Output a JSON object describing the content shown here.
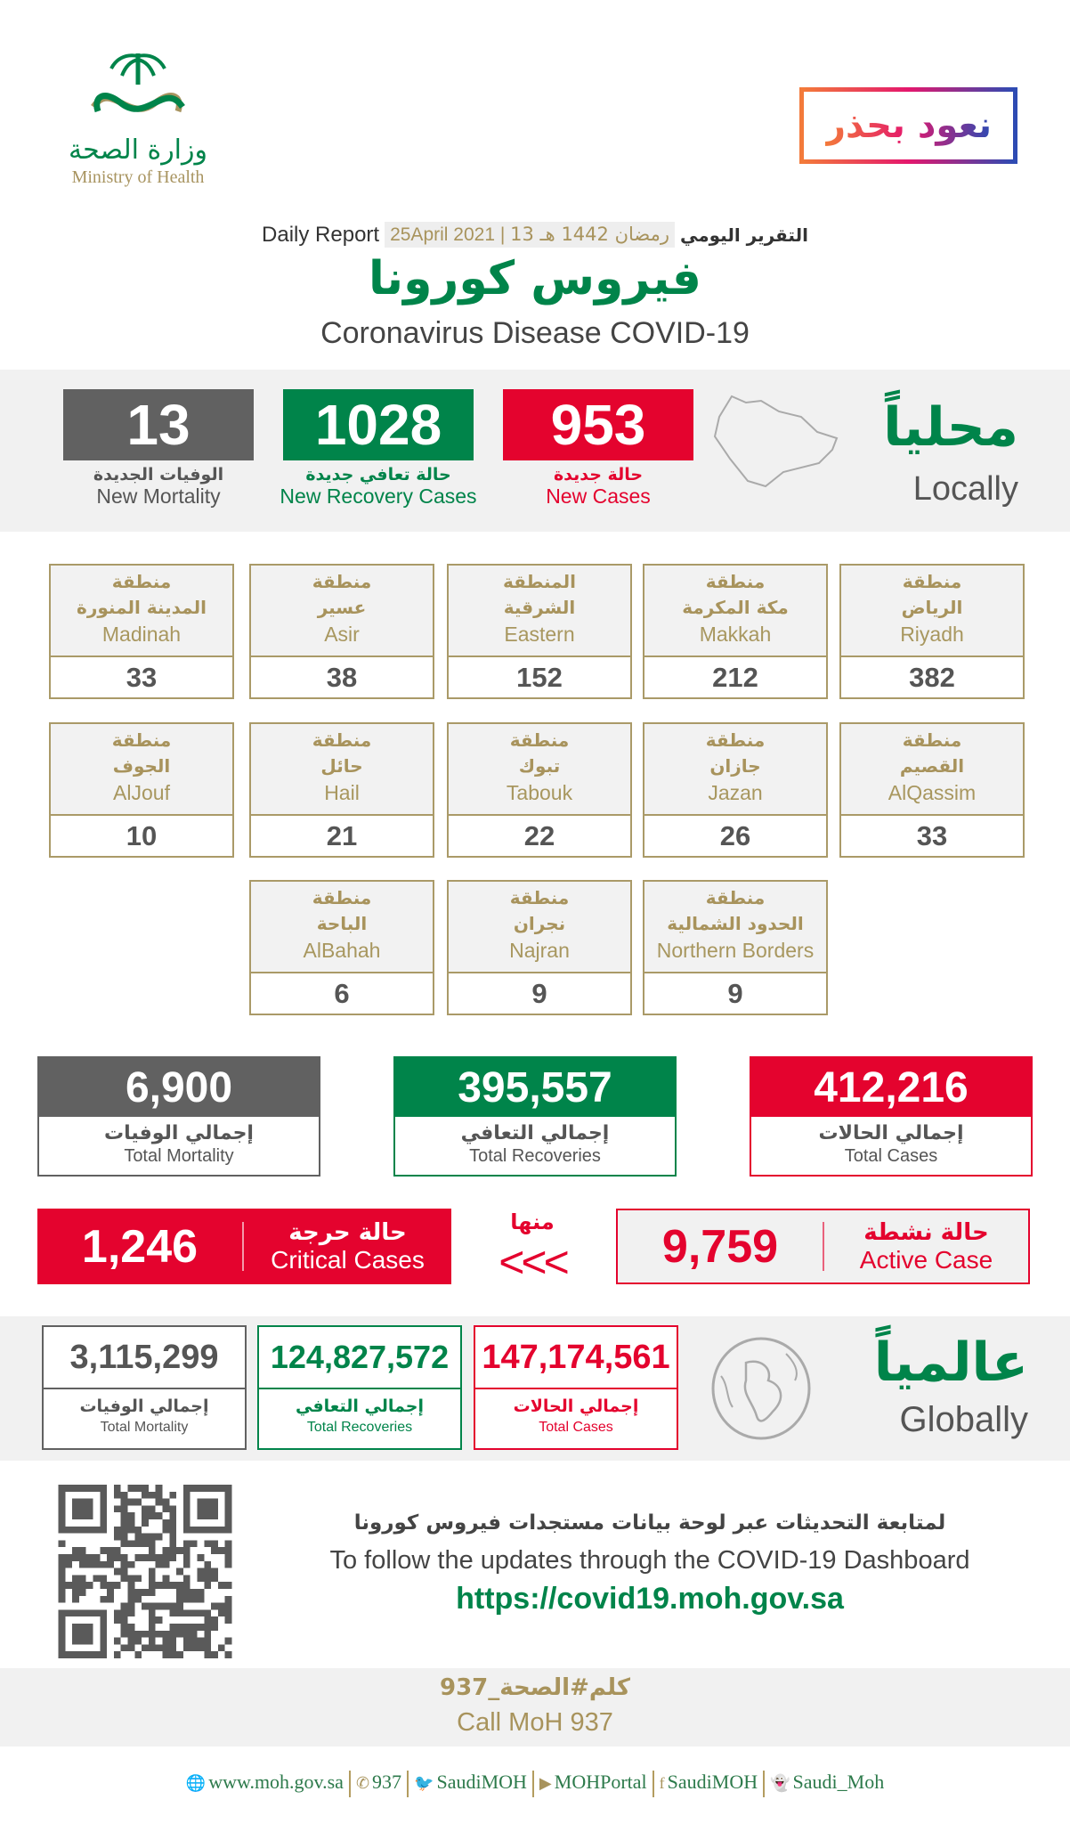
{
  "header": {
    "moh_logo_ar": "وزارة الصحة",
    "moh_logo_en": "Ministry of Health",
    "campaign_logo": "نعود بحذر",
    "daily_report_ar": "التقرير اليومي",
    "hijri_date": "13 رمضان 1442 هـ",
    "gregorian_date": "25April 2021",
    "daily_report_en": "Daily Report",
    "title_ar": "فيروس كورونا",
    "title_en": "Coronavirus Disease COVID-19"
  },
  "local": {
    "title_ar": "محلياً",
    "title_en": "Locally",
    "new_mortality": {
      "value": "13",
      "ar": "الوفيات الجديدة",
      "en": "New Mortality"
    },
    "new_recovery": {
      "value": "1028",
      "ar": "حالة تعافي جديدة",
      "en": "New Recovery Cases"
    },
    "new_cases": {
      "value": "953",
      "ar": "حالة جديدة",
      "en": "New Cases"
    }
  },
  "regions": [
    {
      "ar1": "منطقة",
      "ar2": "الرياض",
      "en": "Riyadh",
      "value": "382"
    },
    {
      "ar1": "منطقة",
      "ar2": "مكة المكرمة",
      "en": "Makkah",
      "value": "212"
    },
    {
      "ar1": "المنطقة",
      "ar2": "الشرقية",
      "en": "Eastern",
      "value": "152"
    },
    {
      "ar1": "منطقة",
      "ar2": "عسير",
      "en": "Asir",
      "value": "38"
    },
    {
      "ar1": "منطقة",
      "ar2": "المدينة المنورة",
      "en": "Madinah",
      "value": "33"
    },
    {
      "ar1": "منطقة",
      "ar2": "القصيم",
      "en": "AlQassim",
      "value": "33"
    },
    {
      "ar1": "منطقة",
      "ar2": "جازان",
      "en": "Jazan",
      "value": "26"
    },
    {
      "ar1": "منطقة",
      "ar2": "تبوك",
      "en": "Tabouk",
      "value": "22"
    },
    {
      "ar1": "منطقة",
      "ar2": "حائل",
      "en": "Hail",
      "value": "21"
    },
    {
      "ar1": "منطقة",
      "ar2": "الجوف",
      "en": "AlJouf",
      "value": "10"
    },
    {
      "ar1": "منطقة",
      "ar2": "الحدود الشمالية",
      "en": "Northern Borders",
      "value": "9"
    },
    {
      "ar1": "منطقة",
      "ar2": "نجران",
      "en": "Najran",
      "value": "9"
    },
    {
      "ar1": "منطقة",
      "ar2": "الباحة",
      "en": "AlBahah",
      "value": "6"
    }
  ],
  "totals": {
    "cases": {
      "value": "412,216",
      "ar": "إجمالي الحالات",
      "en": "Total Cases"
    },
    "recoveries": {
      "value": "395,557",
      "ar": "إجمالي التعافي",
      "en": "Total Recoveries"
    },
    "mortality": {
      "value": "6,900",
      "ar": "إجمالي الوفيات",
      "en": "Total Mortality"
    }
  },
  "active": {
    "value": "9,759",
    "ar": "حالة نشطة",
    "en": "Active Case"
  },
  "of_which": "منها",
  "arrows": "<<<",
  "critical": {
    "value": "1,246",
    "ar": "حالة حرجة",
    "en": "Critical Cases"
  },
  "global": {
    "title_ar": "عالمياً",
    "title_en": "Globally",
    "cases": {
      "value": "147,174,561",
      "ar": "إجمالي الحالات",
      "en": "Total Cases"
    },
    "recoveries": {
      "value": "124,827,572",
      "ar": "إجمالي التعافي",
      "en": "Total Recoveries"
    },
    "mortality": {
      "value": "3,115,299",
      "ar": "إجمالي الوفيات",
      "en": "Total Mortality"
    }
  },
  "dashboard": {
    "ar": "لمتابعة التحديثات عبر لوحة بيانات مستجدات فيروس كورونا",
    "en": "To follow the updates through the COVID-19 Dashboard",
    "url": "https://covid19.moh.gov.sa"
  },
  "call": {
    "ar": "كلم#الصحة_937",
    "en": "Call MoH 937"
  },
  "footer": [
    {
      "icon": "globe-icon",
      "glyph": "🌐",
      "text": "www.moh.gov.sa"
    },
    {
      "icon": "phone-icon",
      "glyph": "✆",
      "text": "937"
    },
    {
      "icon": "twitter-icon",
      "glyph": "🐦",
      "text": "SaudiMOH"
    },
    {
      "icon": "youtube-icon",
      "glyph": "▶",
      "text": "MOHPortal"
    },
    {
      "icon": "facebook-icon",
      "glyph": "f",
      "text": "SaudiMOH"
    },
    {
      "icon": "snapchat-icon",
      "glyph": "👻",
      "text": "Saudi_Moh"
    }
  ],
  "colors": {
    "red": "#e4032e",
    "green": "#00844a",
    "gray": "#616161",
    "gold": "#aa9a68"
  }
}
